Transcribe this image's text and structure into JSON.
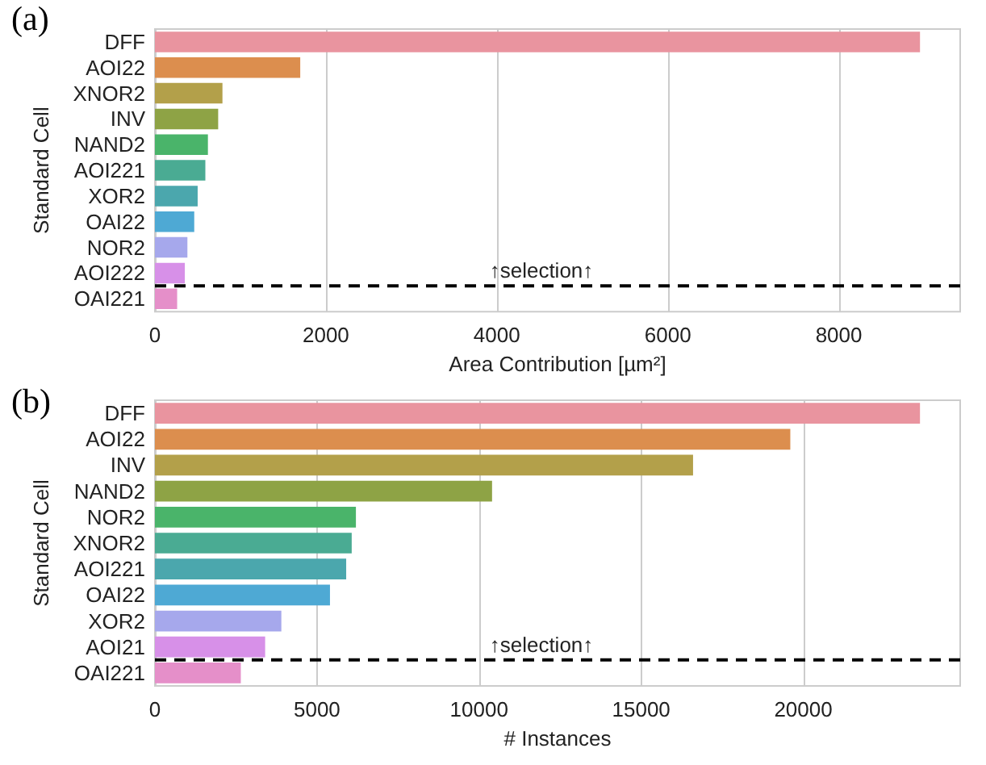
{
  "chart_data": [
    {
      "type": "bar",
      "orientation": "horizontal",
      "title": "(a)",
      "xlabel": "Area Contribution [µm²]",
      "ylabel": "Standard Cell",
      "categories": [
        "DFF",
        "AOI22",
        "XNOR2",
        "INV",
        "NAND2",
        "AOI221",
        "XOR2",
        "OAI22",
        "NOR2",
        "AOI222",
        "OAI221"
      ],
      "values": [
        8950,
        1700,
        790,
        740,
        620,
        590,
        500,
        460,
        380,
        350,
        260
      ],
      "colors": [
        "#e9949f",
        "#dc8e4e",
        "#b3a04a",
        "#8ea345",
        "#4ab46a",
        "#4aab93",
        "#4ba7ad",
        "#4ea9d4",
        "#a6a8ec",
        "#d790e8",
        "#e58fc9"
      ],
      "xlim": [
        0,
        9420
      ],
      "xticks": [
        0,
        2000,
        4000,
        6000,
        8000
      ],
      "grid": "x",
      "ref_lines": [
        {
          "axis": "y",
          "value": "OAI221",
          "label": "↑selection↑",
          "color": "#000000",
          "line_style": "dashed"
        }
      ]
    },
    {
      "type": "bar",
      "orientation": "horizontal",
      "title": "(b)",
      "xlabel": "# Instances",
      "ylabel": "Standard Cell",
      "categories": [
        "DFF",
        "AOI22",
        "INV",
        "NAND2",
        "NOR2",
        "XNOR2",
        "AOI221",
        "OAI22",
        "XOR2",
        "AOI21",
        "OAI221"
      ],
      "values": [
        23600,
        19600,
        16600,
        10400,
        6200,
        6070,
        5900,
        5400,
        3900,
        3400,
        2650
      ],
      "colors": [
        "#e9949f",
        "#dc8e4e",
        "#b3a04a",
        "#8ea345",
        "#4ab46a",
        "#4aab93",
        "#4ba7ad",
        "#4ea9d4",
        "#a6a8ec",
        "#d790e8",
        "#e58fc9"
      ],
      "xlim": [
        0,
        24840
      ],
      "xticks": [
        0,
        5000,
        10000,
        15000,
        20000
      ],
      "grid": "x",
      "ref_lines": [
        {
          "axis": "y",
          "value": "OAI221",
          "label": "↑selection↑",
          "color": "#000000",
          "line_style": "dashed"
        }
      ]
    }
  ]
}
